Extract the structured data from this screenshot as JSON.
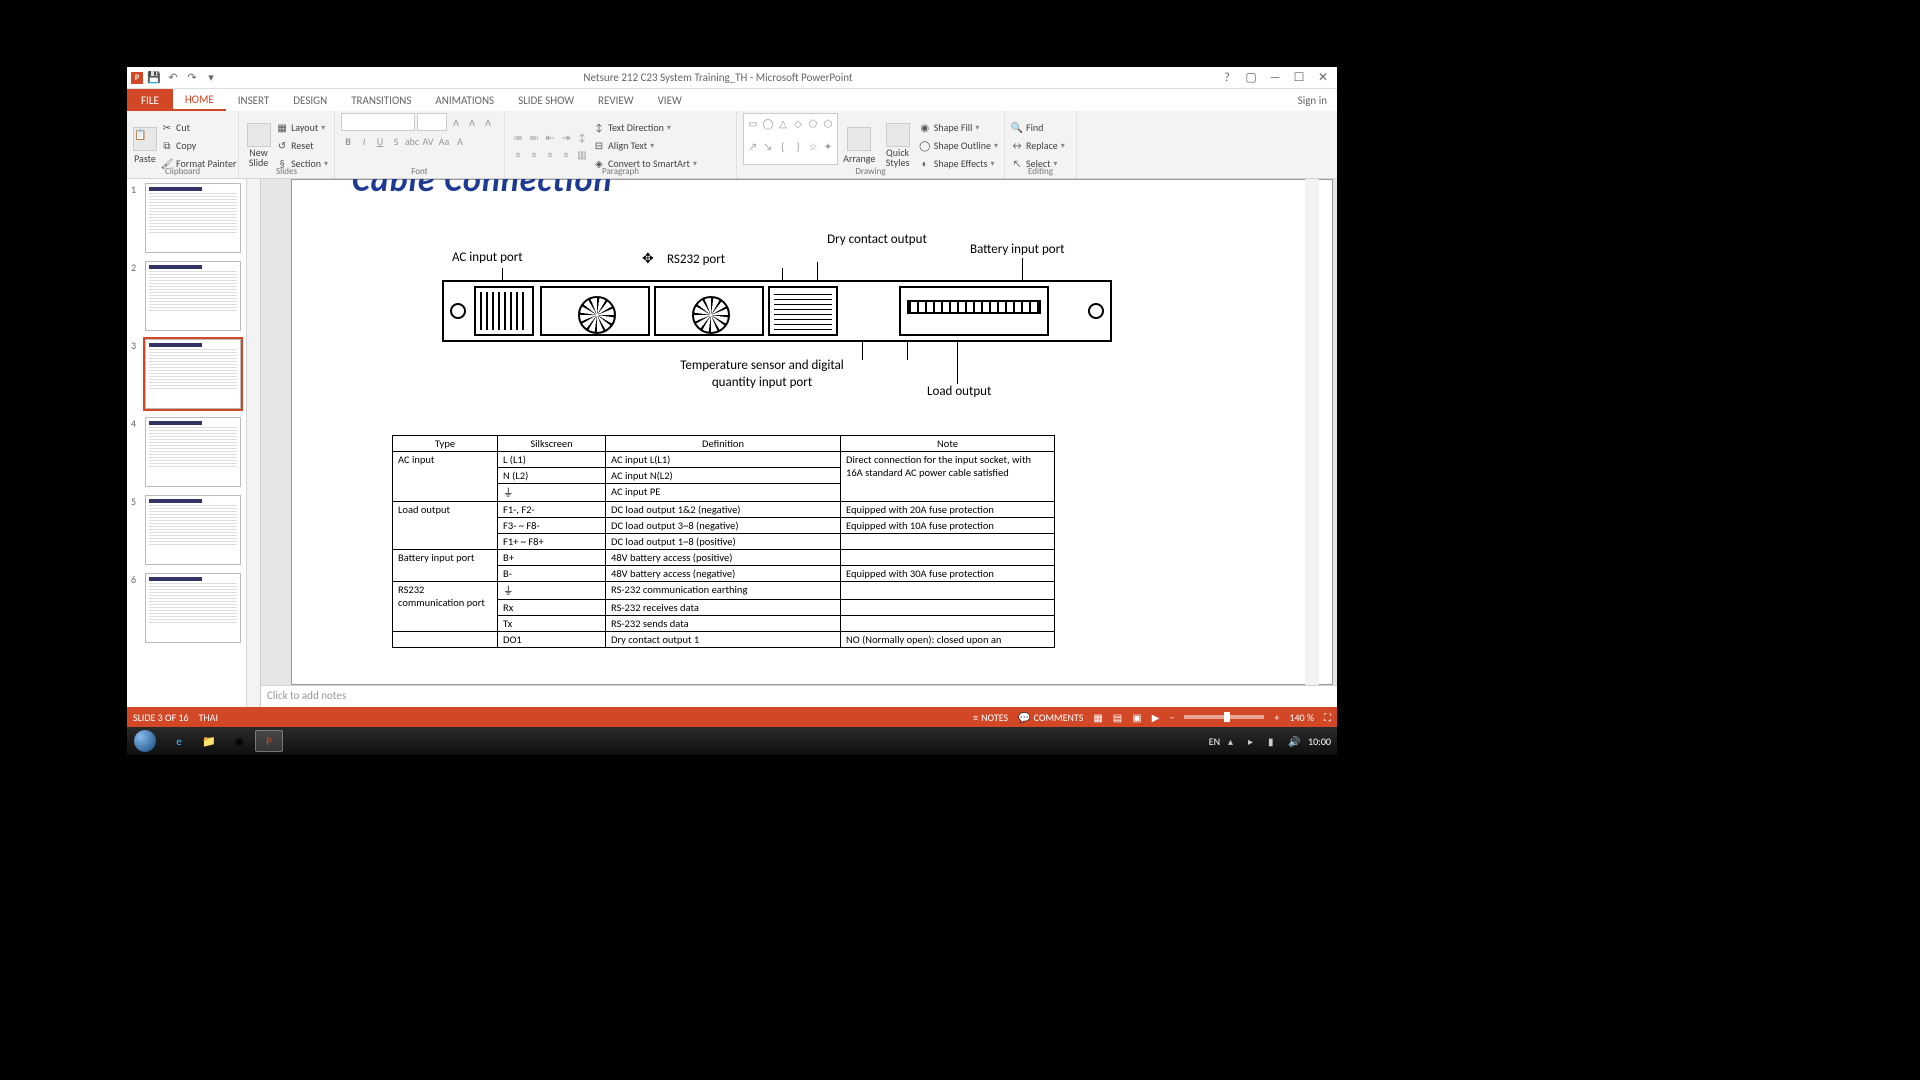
{
  "title_bar": {
    "title": "Netsure 212 C23 System Training_TH - Microsoft PowerPoint"
  },
  "ribbon": {
    "file": "FILE",
    "tabs": [
      "HOME",
      "INSERT",
      "DESIGN",
      "TRANSITIONS",
      "ANIMATIONS",
      "SLIDE SHOW",
      "REVIEW",
      "VIEW"
    ],
    "signin": "Sign in",
    "clipboard": {
      "paste": "Paste",
      "cut": "Cut",
      "copy": "Copy",
      "format_painter": "Format Painter",
      "label": "Clipboard"
    },
    "slides": {
      "new_slide": "New\nSlide",
      "layout": "Layout",
      "reset": "Reset",
      "section": "Section",
      "label": "Slides"
    },
    "font": {
      "label": "Font"
    },
    "paragraph": {
      "text_dir": "Text Direction",
      "align": "Align Text",
      "smartart": "Convert to SmartArt",
      "label": "Paragraph"
    },
    "drawing": {
      "arrange": "Arrange",
      "quick": "Quick\nStyles",
      "fill": "Shape Fill",
      "outline": "Shape Outline",
      "effects": "Shape Effects",
      "label": "Drawing"
    },
    "editing": {
      "find": "Find",
      "replace": "Replace",
      "select": "Select",
      "label": "Editing"
    }
  },
  "thumbs": {
    "count": 6,
    "active": 3
  },
  "slide": {
    "title": "Cable Connection",
    "diagram_labels": {
      "ac_input": "AC input port",
      "rs232": "RS232 port",
      "dry_contact": "Dry contact output",
      "battery_input": "Battery input port",
      "temp_sensor": "Temperature sensor and digital quantity input port",
      "load_output": "Load output"
    },
    "table": {
      "headers": [
        "Type",
        "Silkscreen",
        "Definition",
        "Note"
      ],
      "rows": [
        {
          "type": "AC input",
          "type_rowspan": 3,
          "silk": "L (L1)",
          "def": "AC input L(L1)",
          "note": "Direct connection for the input socket, with 16A standard AC power cable satisfied",
          "note_rowspan": 3
        },
        {
          "silk": "N (L2)",
          "def": "AC input N(L2)"
        },
        {
          "silk": "⏚",
          "def": "AC input PE"
        },
        {
          "type": "Load output",
          "type_rowspan": 3,
          "silk": "F1-, F2-",
          "def": "DC load output 1&2 (negative)",
          "note": "Equipped with 20A fuse protection"
        },
        {
          "silk": "F3- ~ F8-",
          "def": "DC load output 3~8 (negative)",
          "note": "Equipped with 10A fuse protection"
        },
        {
          "silk": "F1+ ~ F8+",
          "def": "DC load output 1~8 (positive)",
          "note": ""
        },
        {
          "type": "Battery input port",
          "type_rowspan": 2,
          "silk": "B+",
          "def": "48V battery access (positive)",
          "note": ""
        },
        {
          "silk": "B-",
          "def": "48V battery access (negative)",
          "note": "Equipped with 30A fuse protection"
        },
        {
          "type": "RS232 communication port",
          "type_rowspan": 3,
          "silk": "⏚",
          "def": "RS-232 communication earthing",
          "note": ""
        },
        {
          "silk": "Rx",
          "def": "RS-232 receives data",
          "note": ""
        },
        {
          "silk": "Tx",
          "def": "RS-232 sends data",
          "note": ""
        },
        {
          "type": "",
          "silk": "DO1",
          "def": "Dry contact output 1",
          "note": "NO (Normally open): closed upon an"
        }
      ]
    }
  },
  "notes": {
    "placeholder": "Click to add notes"
  },
  "status": {
    "slide": "SLIDE 3 OF 16",
    "lang": "THAI",
    "notes": "NOTES",
    "comments": "COMMENTS",
    "zoom": "140 %"
  },
  "taskbar": {
    "lang": "EN",
    "time": "10:00"
  }
}
